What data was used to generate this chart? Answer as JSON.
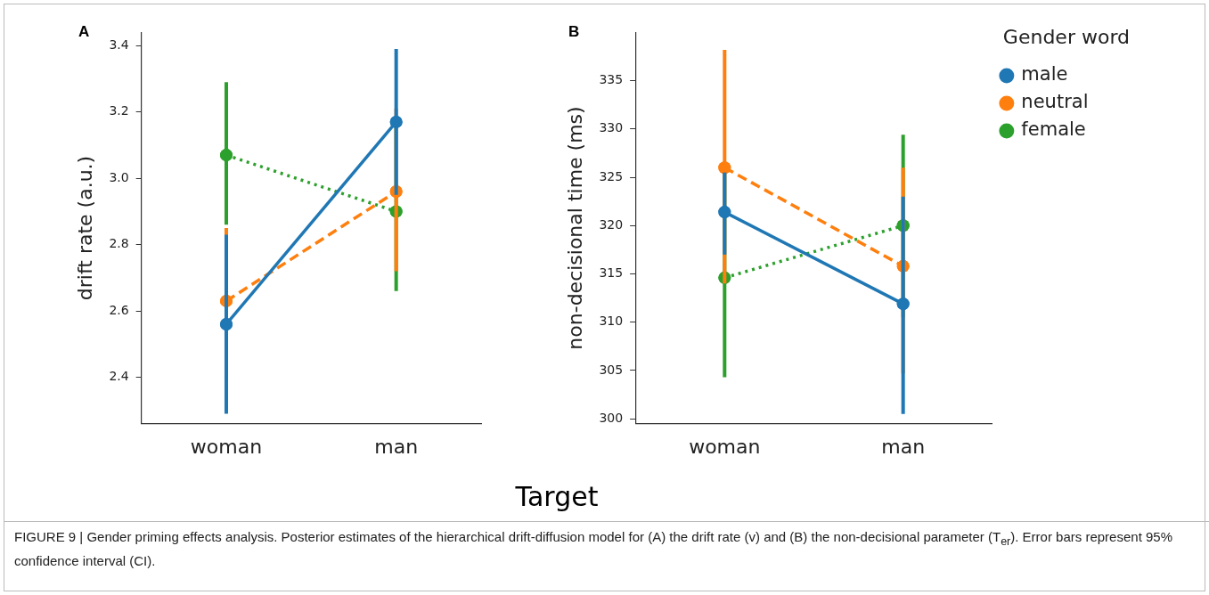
{
  "chart_data": [
    {
      "type": "line",
      "title": "A",
      "categories": [
        "woman",
        "man"
      ],
      "ylabel": "drift rate (a.u.)",
      "xlabel": "Target",
      "ylim": [
        2.26,
        3.44
      ],
      "yticks": [
        2.4,
        2.6,
        2.8,
        {
          "value": 3,
          "label": "3.0"
        },
        3.2,
        3.4
      ],
      "grid": false,
      "marker": "circle",
      "legend": false,
      "series": [
        {
          "color": "#1f77b4",
          "line_style": "solid",
          "values": [
            2.56,
            3.17
          ],
          "errors": [
            [
              2.29,
              2.83
            ],
            [
              2.95,
              3.39
            ]
          ]
        },
        {
          "color": "#ff7f0e",
          "line_style": "dashed",
          "values": [
            2.63,
            2.96
          ],
          "errors": [
            [
              2.39,
              2.85
            ],
            [
              2.72,
              3.21
            ]
          ]
        },
        {
          "color": "#2ca02c",
          "line_style": "dotted",
          "values": [
            3.07,
            2.9
          ],
          "errors": [
            [
              2.86,
              3.29
            ],
            [
              2.66,
              3.16
            ]
          ]
        }
      ]
    },
    {
      "type": "line",
      "title": "B",
      "categories": [
        "woman",
        "man"
      ],
      "ylabel": "non-decisional time (ms)",
      "ylim": [
        299.5,
        340
      ],
      "yticks": [
        300,
        305,
        310,
        315,
        320,
        325,
        330,
        335
      ],
      "grid": false,
      "marker": "circle",
      "legend": "top right",
      "legend_title": "Gender word",
      "annotations": [
        "FIGURE 9 | Gender priming effects analysis. Posterior estimates of the hierarchical drift-diffusion model for (A) the drift rate (v) and (B) the non-decisional parameter (T$_{er}$). Error bars represent 95% confidence interval (CI)."
      ],
      "series": [
        {
          "name": "male",
          "color": "#1f77b4",
          "line_style": "solid",
          "values": [
            321.4,
            311.9
          ],
          "errors": [
            [
              317,
              325.5
            ],
            [
              300.5,
              323
            ]
          ]
        },
        {
          "name": "neutral",
          "color": "#ff7f0e",
          "line_style": "dashed",
          "values": [
            326,
            315.8
          ],
          "errors": [
            [
              314,
              338.2
            ],
            [
              304.7,
              326
            ]
          ]
        },
        {
          "name": "female",
          "color": "#2ca02c",
          "line_style": "dotted",
          "values": [
            314.6,
            320
          ],
          "errors": [
            [
              304.3,
              325.8
            ],
            [
              310.5,
              329.4
            ]
          ]
        }
      ]
    }
  ]
}
